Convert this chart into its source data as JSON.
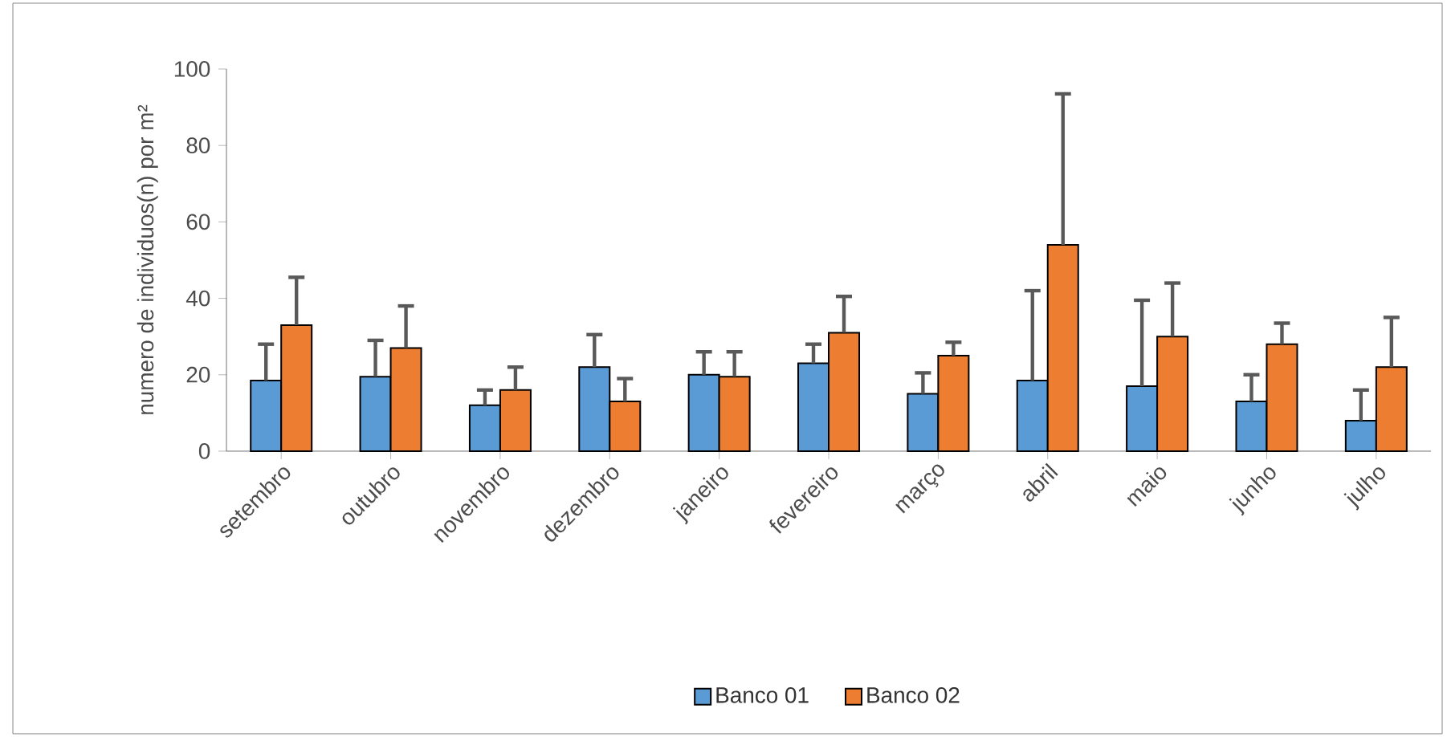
{
  "chart_data": {
    "type": "bar",
    "ylabel": "numero de individuos(n) por m²",
    "categories": [
      "setembro",
      "outubro",
      "novembro",
      "dezembro",
      "janeiro",
      "fevereiro",
      "março",
      "abril",
      "maio",
      "junho",
      "julho"
    ],
    "series": [
      {
        "name": "Banco 01",
        "color": "#5b9bd5",
        "values": [
          18.5,
          19.5,
          12,
          22,
          20,
          23,
          15,
          18.5,
          17,
          13,
          8
        ],
        "errors": [
          [
            18.5,
            28
          ],
          [
            19.5,
            29
          ],
          [
            12,
            16
          ],
          [
            22,
            30.5
          ],
          [
            20,
            26
          ],
          [
            23,
            28
          ],
          [
            15,
            20.5
          ],
          [
            18.5,
            42
          ],
          [
            17,
            39.5
          ],
          [
            13,
            20
          ],
          [
            8,
            16
          ]
        ]
      },
      {
        "name": "Banco 02",
        "color": "#ed7d31",
        "values": [
          33,
          27,
          16,
          13,
          19.5,
          31,
          25,
          54,
          30,
          28,
          22
        ],
        "errors": [
          [
            33,
            45.5
          ],
          [
            27,
            38
          ],
          [
            16,
            22
          ],
          [
            13,
            19
          ],
          [
            19.5,
            26
          ],
          [
            31,
            40.5
          ],
          [
            25,
            28.5
          ],
          [
            54,
            93.5
          ],
          [
            30,
            44
          ],
          [
            28,
            33.5
          ],
          [
            22,
            35
          ]
        ]
      }
    ],
    "ylim": [
      0,
      100
    ],
    "yticks": [
      0,
      20,
      40,
      60,
      80,
      100
    ],
    "grid": false,
    "legend": "bottom"
  }
}
